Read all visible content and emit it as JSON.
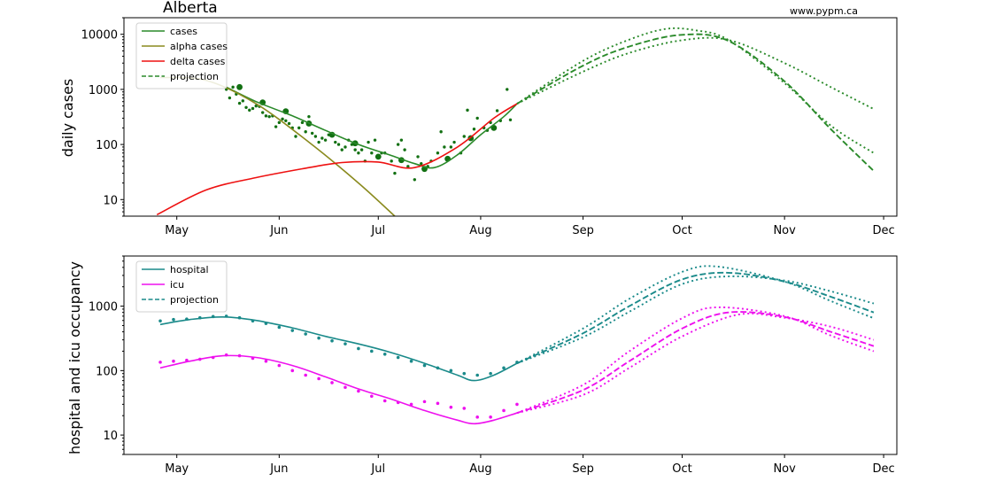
{
  "page": {
    "title": "Alberta",
    "credit": "www.pypm.ca"
  },
  "chart_data": [
    {
      "type": "line",
      "ylabel": "daily cases",
      "yscale": "log",
      "ylim": [
        5,
        20000
      ],
      "yticks": [
        10,
        100,
        1000,
        10000
      ],
      "ytick_labels": [
        "10",
        "100",
        "1000",
        "10000"
      ],
      "xlim": [
        "2021-04-15",
        "2021-12-05"
      ],
      "xticks": [
        "2021-05-01",
        "2021-06-01",
        "2021-07-01",
        "2021-08-01",
        "2021-09-01",
        "2021-10-01",
        "2021-11-01",
        "2021-12-01"
      ],
      "xtick_labels": [
        "May",
        "Jun",
        "Jul",
        "Aug",
        "Sep",
        "Oct",
        "Nov",
        "Dec"
      ],
      "legend": {
        "location": "top-left",
        "entries": [
          {
            "label": "cases",
            "color": "#2a8a2a",
            "style": "solid"
          },
          {
            "label": "alpha cases",
            "color": "#8a8a1e",
            "style": "solid"
          },
          {
            "label": "delta cases",
            "color": "#ee1111",
            "style": "solid"
          },
          {
            "label": "projection",
            "color": "#2a8a2a",
            "style": "dashed"
          }
        ]
      },
      "series": [
        {
          "name": "cases",
          "color": "#2a8a2a",
          "style": "solid",
          "x": [
            "2021-05-16",
            "2021-05-25",
            "2021-06-05",
            "2021-06-15",
            "2021-06-25",
            "2021-07-05",
            "2021-07-12",
            "2021-07-18",
            "2021-07-25",
            "2021-08-01",
            "2021-08-08",
            "2021-08-12"
          ],
          "y": [
            1100,
            600,
            330,
            180,
            100,
            63,
            45,
            38,
            65,
            150,
            320,
            550
          ]
        },
        {
          "name": "alpha cases",
          "color": "#8a8a1e",
          "style": "solid",
          "x": [
            "2021-04-26",
            "2021-05-10",
            "2021-05-25",
            "2021-06-10",
            "2021-06-25",
            "2021-07-06"
          ],
          "y": [
            1650,
            1450,
            550,
            110,
            20,
            5
          ]
        },
        {
          "name": "delta cases",
          "color": "#ee1111",
          "style": "solid",
          "x": [
            "2021-04-25",
            "2021-05-10",
            "2021-05-25",
            "2021-06-10",
            "2021-06-20",
            "2021-07-01",
            "2021-07-12",
            "2021-07-25",
            "2021-08-05",
            "2021-08-12"
          ],
          "y": [
            5.3,
            15,
            25,
            38,
            47,
            48,
            38,
            90,
            300,
            550
          ]
        },
        {
          "name": "projection",
          "color": "#2a8a2a",
          "style": "dashed",
          "x": [
            "2021-08-12",
            "2021-09-01",
            "2021-09-15",
            "2021-10-01",
            "2021-10-15",
            "2021-11-01",
            "2021-11-15",
            "2021-11-28"
          ],
          "y": [
            550,
            2700,
            6000,
            9800,
            7600,
            1400,
            190,
            33
          ]
        },
        {
          "name": "",
          "color": "#2a8a2a",
          "style": "dotted",
          "x": [
            "2021-08-12",
            "2021-09-01",
            "2021-09-15",
            "2021-09-26",
            "2021-10-05",
            "2021-10-15",
            "2021-11-01",
            "2021-11-15",
            "2021-11-28"
          ],
          "y": [
            550,
            3300,
            8000,
            12500,
            11800,
            7900,
            1300,
            220,
            70
          ]
        },
        {
          "name": "",
          "color": "#2a8a2a",
          "style": "dotted",
          "x": [
            "2021-08-12",
            "2021-09-01",
            "2021-09-15",
            "2021-10-01",
            "2021-10-15",
            "2021-11-01",
            "2021-11-15",
            "2021-11-28"
          ],
          "y": [
            550,
            2100,
            4600,
            7800,
            7900,
            3000,
            1100,
            440
          ]
        }
      ],
      "scatter": {
        "color": "#127012",
        "daily": {
          "x": [
            "2021-05-16",
            "2021-05-17",
            "2021-05-18",
            "2021-05-19",
            "2021-05-20",
            "2021-05-21",
            "2021-05-22",
            "2021-05-23",
            "2021-05-24",
            "2021-05-25",
            "2021-05-26",
            "2021-05-27",
            "2021-05-28",
            "2021-05-29",
            "2021-05-30",
            "2021-05-31",
            "2021-06-01",
            "2021-06-02",
            "2021-06-03",
            "2021-06-04",
            "2021-06-05",
            "2021-06-06",
            "2021-06-07",
            "2021-06-08",
            "2021-06-09",
            "2021-06-10",
            "2021-06-11",
            "2021-06-12",
            "2021-06-13",
            "2021-06-14",
            "2021-06-15",
            "2021-06-16",
            "2021-06-17",
            "2021-06-18",
            "2021-06-19",
            "2021-06-20",
            "2021-06-21",
            "2021-06-22",
            "2021-06-23",
            "2021-06-24",
            "2021-06-25",
            "2021-06-26",
            "2021-06-27",
            "2021-06-28",
            "2021-06-29",
            "2021-06-30",
            "2021-07-02",
            "2021-07-03",
            "2021-07-05",
            "2021-07-06",
            "2021-07-07",
            "2021-07-08",
            "2021-07-09",
            "2021-07-10",
            "2021-07-12",
            "2021-07-13",
            "2021-07-14",
            "2021-07-16",
            "2021-07-17",
            "2021-07-19",
            "2021-07-20",
            "2021-07-21",
            "2021-07-23",
            "2021-07-24",
            "2021-07-26",
            "2021-07-27",
            "2021-07-28",
            "2021-07-30",
            "2021-07-31",
            "2021-08-02",
            "2021-08-03",
            "2021-08-04",
            "2021-08-06",
            "2021-08-07",
            "2021-08-09",
            "2021-08-10"
          ],
          "y": [
            1000,
            700,
            1100,
            820,
            560,
            620,
            470,
            420,
            450,
            500,
            490,
            380,
            330,
            320,
            330,
            210,
            250,
            290,
            270,
            240,
            200,
            140,
            200,
            250,
            170,
            320,
            160,
            140,
            110,
            130,
            120,
            150,
            150,
            110,
            100,
            80,
            90,
            120,
            100,
            80,
            70,
            80,
            50,
            110,
            70,
            120,
            70,
            70,
            50,
            30,
            100,
            120,
            80,
            40,
            23,
            60,
            45,
            40,
            50,
            70,
            170,
            90,
            90,
            110,
            70,
            140,
            420,
            190,
            300,
            200,
            180,
            250,
            410,
            270,
            1000,
            280
          ]
        },
        "weekly": {
          "x": [
            "2021-05-20",
            "2021-05-27",
            "2021-06-03",
            "2021-06-10",
            "2021-06-17",
            "2021-06-24",
            "2021-07-01",
            "2021-07-08",
            "2021-07-15",
            "2021-07-22",
            "2021-07-29",
            "2021-08-05"
          ],
          "y": [
            1100,
            580,
            400,
            240,
            150,
            105,
            60,
            52,
            36,
            55,
            130,
            200
          ]
        }
      }
    },
    {
      "type": "line",
      "ylabel": "hospital and icu occupancy",
      "yscale": "log",
      "ylim": [
        5,
        6000
      ],
      "yticks": [
        10,
        100,
        1000
      ],
      "ytick_labels": [
        "10",
        "100",
        "1000"
      ],
      "xlim": [
        "2021-04-15",
        "2021-12-05"
      ],
      "xticks": [
        "2021-05-01",
        "2021-06-01",
        "2021-07-01",
        "2021-08-01",
        "2021-09-01",
        "2021-10-01",
        "2021-11-01",
        "2021-12-01"
      ],
      "xtick_labels": [
        "May",
        "Jun",
        "Jul",
        "Aug",
        "Sep",
        "Oct",
        "Nov",
        "Dec"
      ],
      "legend": {
        "location": "top-left",
        "entries": [
          {
            "label": "hospital",
            "color": "#1a8a8a",
            "style": "solid"
          },
          {
            "label": "icu",
            "color": "#ee11ee",
            "style": "solid"
          },
          {
            "label": "projection",
            "color": "#1a8a8a",
            "style": "dashed"
          }
        ]
      },
      "series": [
        {
          "name": "hospital",
          "color": "#1a8a8a",
          "style": "solid",
          "x": [
            "2021-04-26",
            "2021-05-05",
            "2021-05-15",
            "2021-05-25",
            "2021-06-05",
            "2021-06-15",
            "2021-06-25",
            "2021-07-05",
            "2021-07-15",
            "2021-07-25",
            "2021-07-30",
            "2021-08-05",
            "2021-08-12"
          ],
          "y": [
            520,
            620,
            680,
            600,
            460,
            340,
            260,
            190,
            130,
            85,
            70,
            85,
            130
          ]
        },
        {
          "name": "icu",
          "color": "#ee11ee",
          "style": "solid",
          "x": [
            "2021-04-26",
            "2021-05-05",
            "2021-05-15",
            "2021-05-25",
            "2021-06-05",
            "2021-06-15",
            "2021-06-25",
            "2021-07-05",
            "2021-07-15",
            "2021-07-25",
            "2021-07-30",
            "2021-08-05",
            "2021-08-12"
          ],
          "y": [
            110,
            140,
            170,
            160,
            120,
            80,
            52,
            36,
            24,
            17,
            15,
            17,
            22
          ]
        },
        {
          "name": "projection",
          "color": "#1a8a8a",
          "style": "dashed",
          "x": [
            "2021-08-12",
            "2021-09-01",
            "2021-09-15",
            "2021-10-01",
            "2021-10-15",
            "2021-11-01",
            "2021-11-15",
            "2021-11-28"
          ],
          "y": [
            130,
            380,
            1000,
            2600,
            3300,
            2400,
            1400,
            800
          ]
        },
        {
          "name": "",
          "color": "#1a8a8a",
          "style": "dotted",
          "x": [
            "2021-08-12",
            "2021-09-01",
            "2021-09-15",
            "2021-10-01",
            "2021-10-12",
            "2021-11-01",
            "2021-11-15",
            "2021-11-28"
          ],
          "y": [
            130,
            450,
            1300,
            3400,
            4100,
            2400,
            1200,
            650
          ]
        },
        {
          "name": "",
          "color": "#1a8a8a",
          "style": "dotted",
          "x": [
            "2021-08-12",
            "2021-09-01",
            "2021-09-15",
            "2021-10-01",
            "2021-10-15",
            "2021-11-01",
            "2021-11-15",
            "2021-11-28"
          ],
          "y": [
            130,
            330,
            820,
            2200,
            2900,
            2500,
            1700,
            1100
          ]
        },
        {
          "name": "",
          "color": "#ee11ee",
          "style": "dashed",
          "x": [
            "2021-08-12",
            "2021-09-01",
            "2021-09-15",
            "2021-10-01",
            "2021-10-15",
            "2021-11-01",
            "2021-11-15",
            "2021-11-28"
          ],
          "y": [
            22,
            50,
            140,
            450,
            800,
            680,
            400,
            240
          ]
        },
        {
          "name": "",
          "color": "#ee11ee",
          "style": "dotted",
          "x": [
            "2021-08-12",
            "2021-09-01",
            "2021-09-15",
            "2021-10-01",
            "2021-10-12",
            "2021-11-01",
            "2021-11-15",
            "2021-11-28"
          ],
          "y": [
            22,
            60,
            200,
            650,
            960,
            700,
            350,
            200
          ]
        },
        {
          "name": "",
          "color": "#ee11ee",
          "style": "dotted",
          "x": [
            "2021-08-12",
            "2021-09-01",
            "2021-09-15",
            "2021-10-01",
            "2021-10-18",
            "2021-11-01",
            "2021-11-15",
            "2021-11-28"
          ],
          "y": [
            22,
            42,
            110,
            340,
            740,
            660,
            480,
            300
          ]
        }
      ],
      "scatter_hospital": {
        "color": "#1a8a8a",
        "x": [
          "2021-04-26",
          "2021-04-30",
          "2021-05-04",
          "2021-05-08",
          "2021-05-12",
          "2021-05-16",
          "2021-05-20",
          "2021-05-24",
          "2021-05-28",
          "2021-06-01",
          "2021-06-05",
          "2021-06-09",
          "2021-06-13",
          "2021-06-17",
          "2021-06-21",
          "2021-06-25",
          "2021-06-29",
          "2021-07-03",
          "2021-07-07",
          "2021-07-11",
          "2021-07-15",
          "2021-07-19",
          "2021-07-23",
          "2021-07-27",
          "2021-07-31",
          "2021-08-04",
          "2021-08-08",
          "2021-08-12"
        ],
        "y": [
          590,
          620,
          630,
          660,
          690,
          700,
          660,
          590,
          540,
          470,
          420,
          370,
          320,
          290,
          260,
          220,
          200,
          180,
          160,
          140,
          120,
          110,
          100,
          90,
          85,
          90,
          110,
          135
        ]
      },
      "scatter_icu": {
        "color": "#ee11ee",
        "x": [
          "2021-04-26",
          "2021-04-30",
          "2021-05-04",
          "2021-05-08",
          "2021-05-12",
          "2021-05-16",
          "2021-05-20",
          "2021-05-24",
          "2021-05-28",
          "2021-06-01",
          "2021-06-05",
          "2021-06-09",
          "2021-06-13",
          "2021-06-17",
          "2021-06-21",
          "2021-06-25",
          "2021-06-29",
          "2021-07-03",
          "2021-07-07",
          "2021-07-11",
          "2021-07-15",
          "2021-07-19",
          "2021-07-23",
          "2021-07-27",
          "2021-07-31",
          "2021-08-04",
          "2021-08-08",
          "2021-08-12"
        ],
        "y": [
          135,
          140,
          145,
          150,
          160,
          175,
          170,
          155,
          140,
          120,
          100,
          85,
          75,
          65,
          55,
          48,
          40,
          34,
          32,
          30,
          33,
          31,
          27,
          26,
          19,
          19,
          24,
          30
        ]
      }
    }
  ]
}
